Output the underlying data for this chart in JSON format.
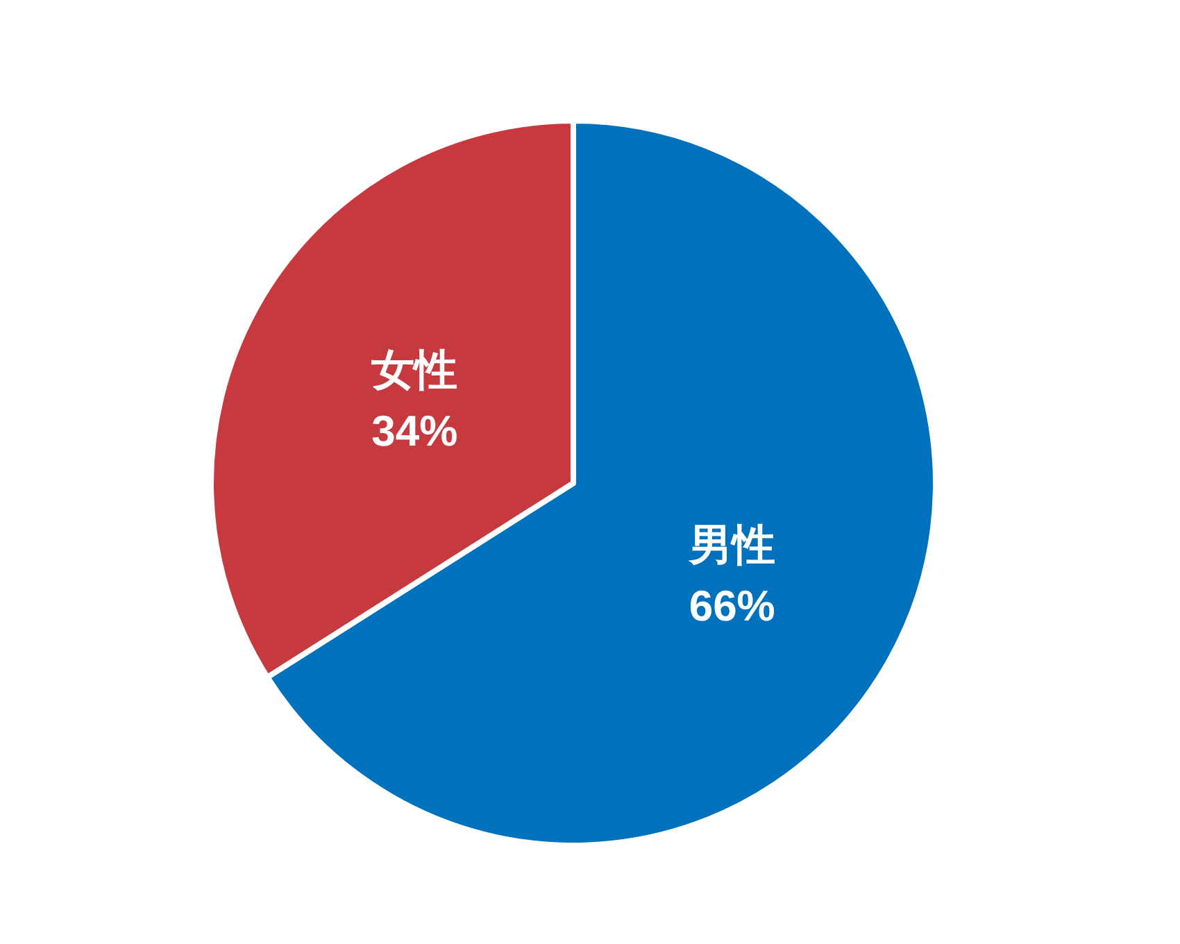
{
  "chart_data": {
    "type": "pie",
    "categories": [
      "男性",
      "女性"
    ],
    "values": [
      66,
      34
    ],
    "colors": [
      "#0071bc",
      "#c6393f"
    ],
    "value_labels": [
      "66%",
      "34%"
    ]
  }
}
